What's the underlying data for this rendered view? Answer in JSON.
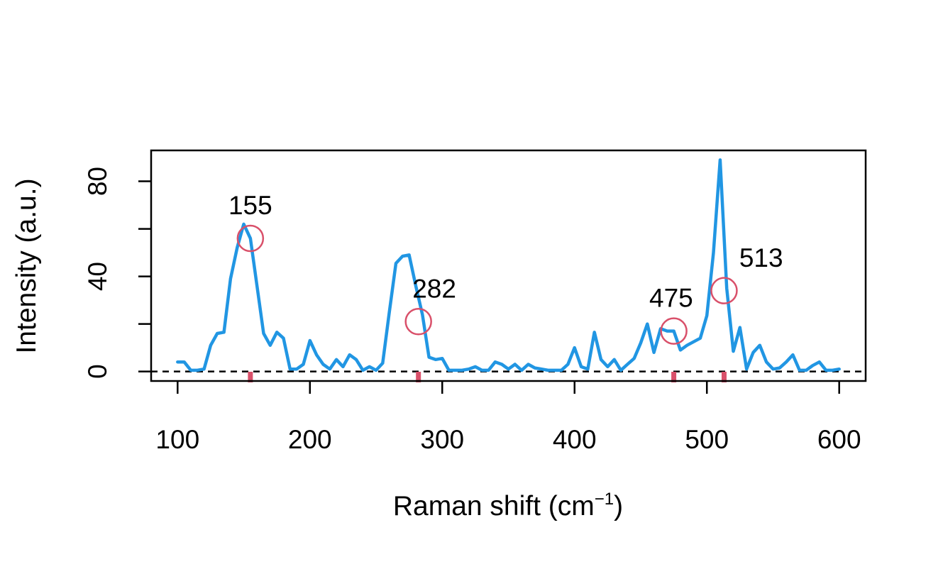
{
  "chart_data": {
    "type": "line",
    "title": "",
    "xlabel": "Raman shift (cm",
    "xlabel_superscript": "−1",
    "xlabel_suffix": ")",
    "ylabel": "Intensity (a.u.)",
    "xlim": [
      80,
      620
    ],
    "ylim": [
      -4,
      93
    ],
    "x_ticks": [
      100,
      200,
      300,
      400,
      500,
      600
    ],
    "y_ticks": [
      0,
      20,
      40,
      60,
      80
    ],
    "y_tick_labels": [
      "0",
      "",
      "40",
      "",
      "80"
    ],
    "grid": false,
    "legend": "none",
    "baseline": 0,
    "colors": {
      "line": "#2196e3",
      "peak_marker": "#d9506a",
      "baseline": "#000000"
    },
    "series": [
      {
        "x": [
          100,
          105,
          110,
          115,
          120,
          125,
          130,
          135,
          140,
          145,
          150,
          155,
          160,
          165,
          170,
          175,
          180,
          185,
          190,
          195,
          200,
          205,
          210,
          215,
          220,
          225,
          230,
          235,
          240,
          245,
          250,
          255,
          260,
          265,
          270,
          275,
          280,
          285,
          290,
          295,
          300,
          305,
          310,
          315,
          320,
          325,
          330,
          335,
          340,
          345,
          350,
          355,
          360,
          365,
          370,
          375,
          380,
          385,
          390,
          395,
          400,
          405,
          410,
          415,
          420,
          425,
          430,
          435,
          440,
          445,
          450,
          455,
          460,
          465,
          470,
          475,
          480,
          485,
          490,
          495,
          500,
          505,
          510,
          515,
          520,
          525,
          530,
          535,
          540,
          545,
          550,
          555,
          560,
          565,
          570,
          575,
          580,
          585,
          590,
          595,
          600
        ],
        "values": [
          4,
          4,
          0.5,
          0.5,
          1,
          11,
          16,
          16.5,
          39,
          52,
          62,
          56,
          36,
          16,
          11,
          16.5,
          14,
          1,
          1,
          3,
          13,
          7,
          3,
          1,
          5,
          2,
          7,
          5,
          0.5,
          2,
          0.5,
          3.5,
          25,
          45.5,
          48.5,
          49,
          36,
          24,
          6,
          5,
          5.5,
          0.5,
          0.5,
          0.5,
          1,
          2,
          0.5,
          0.5,
          4,
          3,
          1,
          3,
          0.5,
          3,
          1.5,
          1,
          0.5,
          0.5,
          0.5,
          3,
          10,
          2,
          1,
          16.5,
          5,
          2,
          5,
          0.5,
          3,
          5.5,
          12,
          20,
          8,
          18,
          17,
          17,
          9,
          11,
          12.5,
          14,
          23.5,
          50,
          89,
          35,
          8.5,
          18.5,
          1,
          8,
          11,
          4,
          1,
          1.5,
          4,
          7,
          0.5,
          0.5,
          2.5,
          4,
          0.5,
          0.5,
          1
        ]
      }
    ],
    "peaks": [
      {
        "position": 155,
        "intensity": 56,
        "label": "155",
        "label_x": 155,
        "label_y": 70
      },
      {
        "position": 282,
        "intensity": 21,
        "label": "282",
        "label_x": 294,
        "label_y": 35
      },
      {
        "position": 475,
        "intensity": 17,
        "label": "475",
        "label_x": 473,
        "label_y": 31
      },
      {
        "position": 513,
        "intensity": 34,
        "label": "513",
        "label_x": 541,
        "label_y": 48
      }
    ]
  }
}
